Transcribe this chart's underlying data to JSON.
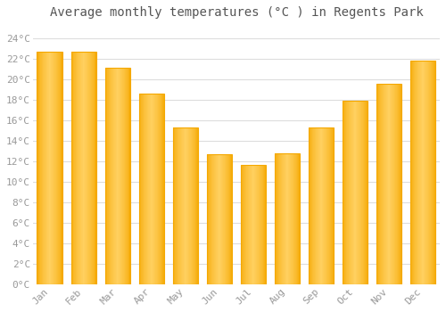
{
  "title": "Average monthly temperatures (°C ) in Regents Park",
  "months": [
    "Jan",
    "Feb",
    "Mar",
    "Apr",
    "May",
    "Jun",
    "Jul",
    "Aug",
    "Sep",
    "Oct",
    "Nov",
    "Dec"
  ],
  "values": [
    22.7,
    22.7,
    21.2,
    18.6,
    15.3,
    12.7,
    11.7,
    12.8,
    15.3,
    17.9,
    19.6,
    21.9
  ],
  "bar_color_center": "#FFD060",
  "bar_color_edge": "#F5A800",
  "background_color": "#FFFFFF",
  "grid_color": "#DDDDDD",
  "ytick_labels": [
    "0°C",
    "2°C",
    "4°C",
    "6°C",
    "8°C",
    "10°C",
    "12°C",
    "14°C",
    "16°C",
    "18°C",
    "20°C",
    "22°C",
    "24°C"
  ],
  "ytick_values": [
    0,
    2,
    4,
    6,
    8,
    10,
    12,
    14,
    16,
    18,
    20,
    22,
    24
  ],
  "ylim": [
    0,
    25.5
  ],
  "title_fontsize": 10,
  "tick_fontsize": 8,
  "tick_color": "#999999",
  "title_color": "#555555",
  "font_family": "monospace",
  "bar_width": 0.75
}
